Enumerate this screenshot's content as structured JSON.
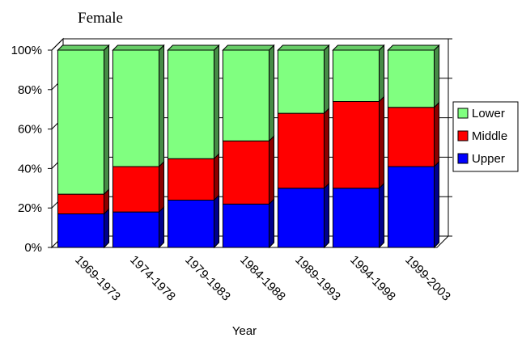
{
  "chart_data": {
    "type": "bar",
    "stacked": true,
    "percent": true,
    "title": "Female",
    "xlabel": "Year",
    "ylabel": "",
    "ylim": [
      0,
      100
    ],
    "yticks": [
      "0%",
      "20%",
      "40%",
      "60%",
      "80%",
      "100%"
    ],
    "categories": [
      "1969-1973",
      "1974-1978",
      "1979-1983",
      "1984-1988",
      "1989-1993",
      "1994-1998",
      "1999-2003"
    ],
    "series": [
      {
        "name": "Upper",
        "color": "#0000ff",
        "values": [
          17,
          18,
          24,
          22,
          30,
          30,
          41
        ]
      },
      {
        "name": "Middle",
        "color": "#ff0000",
        "values": [
          10,
          23,
          21,
          32,
          38,
          44,
          30
        ]
      },
      {
        "name": "Lower",
        "color": "#80ff80",
        "values": [
          73,
          59,
          55,
          46,
          32,
          26,
          29
        ]
      }
    ],
    "legend_order": [
      "Lower",
      "Middle",
      "Upper"
    ],
    "legend_position": "right",
    "grid": true
  }
}
